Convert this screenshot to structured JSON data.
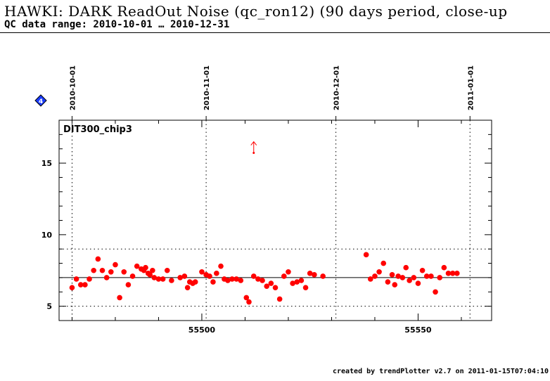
{
  "header": {
    "title": "HAWKI: DARK ReadOut Noise (qc_ron12) (90 days period, close-up",
    "subtitle": "QC data range: 2010-10-01 … 2010-12-31"
  },
  "footer": {
    "credit": "created by trendPlotter v2.7 on 2011-01-15T07:04:10"
  },
  "marker_badge": {
    "label": "4",
    "color": "#1a3cff"
  },
  "chart_data": {
    "type": "scatter",
    "panel_label": "DIT300_chip3",
    "xlim": [
      55467,
      55567
    ],
    "ylim": [
      4,
      18
    ],
    "x_ticks": [
      55500,
      55550
    ],
    "y_ticks": [
      5,
      10,
      15
    ],
    "date_markers": [
      {
        "label": "2010-10-01",
        "x": 55470
      },
      {
        "label": "2010-11-01",
        "x": 55501
      },
      {
        "label": "2010-12-01",
        "x": 55531
      },
      {
        "label": "2011-01-01",
        "x": 55562
      }
    ],
    "reference_lines": {
      "mean": 7.0,
      "upper": 9.0,
      "lower": 5.0
    },
    "colors": {
      "points": "#ff0000",
      "lines": "#000000"
    },
    "outlier_arrow": {
      "x": 55512,
      "y": 16.5
    },
    "points": [
      [
        55470,
        6.3
      ],
      [
        55471,
        6.9
      ],
      [
        55472,
        6.5
      ],
      [
        55473,
        6.5
      ],
      [
        55474,
        6.9
      ],
      [
        55475,
        7.5
      ],
      [
        55476,
        8.3
      ],
      [
        55477,
        7.5
      ],
      [
        55478,
        7.0
      ],
      [
        55479,
        7.4
      ],
      [
        55480,
        7.9
      ],
      [
        55481,
        5.6
      ],
      [
        55482,
        7.4
      ],
      [
        55483,
        6.5
      ],
      [
        55484,
        7.1
      ],
      [
        55485,
        7.8
      ],
      [
        55486,
        7.6
      ],
      [
        55486.6,
        7.5
      ],
      [
        55487,
        7.7
      ],
      [
        55487.6,
        7.3
      ],
      [
        55488,
        7.2
      ],
      [
        55488.6,
        7.5
      ],
      [
        55489,
        7.0
      ],
      [
        55490,
        6.9
      ],
      [
        55491,
        6.9
      ],
      [
        55492,
        7.5
      ],
      [
        55493,
        6.8
      ],
      [
        55495,
        7.0
      ],
      [
        55496,
        7.1
      ],
      [
        55496.7,
        6.3
      ],
      [
        55497.2,
        6.7
      ],
      [
        55497.9,
        6.6
      ],
      [
        55498.5,
        6.7
      ],
      [
        55500,
        7.4
      ],
      [
        55501,
        7.2
      ],
      [
        55501.8,
        7.1
      ],
      [
        55502.6,
        6.7
      ],
      [
        55503.4,
        7.3
      ],
      [
        55504.4,
        7.8
      ],
      [
        55505.2,
        6.9
      ],
      [
        55506,
        6.8
      ],
      [
        55507,
        6.9
      ],
      [
        55508,
        6.9
      ],
      [
        55509,
        6.8
      ],
      [
        55510.3,
        5.6
      ],
      [
        55510.9,
        5.3
      ],
      [
        55512,
        7.1
      ],
      [
        55513,
        6.9
      ],
      [
        55514,
        6.8
      ],
      [
        55515,
        6.4
      ],
      [
        55516,
        6.6
      ],
      [
        55517,
        6.3
      ],
      [
        55518,
        5.5
      ],
      [
        55519,
        7.1
      ],
      [
        55520,
        7.4
      ],
      [
        55521,
        6.6
      ],
      [
        55522,
        6.7
      ],
      [
        55523,
        6.8
      ],
      [
        55524,
        6.3
      ],
      [
        55525,
        7.3
      ],
      [
        55526,
        7.2
      ],
      [
        55528,
        7.1
      ],
      [
        55538,
        8.6
      ],
      [
        55539,
        6.9
      ],
      [
        55540,
        7.1
      ],
      [
        55541,
        7.4
      ],
      [
        55542,
        8.0
      ],
      [
        55543,
        6.7
      ],
      [
        55544,
        7.2
      ],
      [
        55544.6,
        6.5
      ],
      [
        55545.4,
        7.1
      ],
      [
        55546.4,
        7.0
      ],
      [
        55547.2,
        7.7
      ],
      [
        55548,
        6.8
      ],
      [
        55549,
        7.0
      ],
      [
        55550,
        6.6
      ],
      [
        55551,
        7.5
      ],
      [
        55552,
        7.1
      ],
      [
        55553,
        7.1
      ],
      [
        55554,
        6.0
      ],
      [
        55555,
        7.0
      ],
      [
        55556,
        7.7
      ],
      [
        55557,
        7.3
      ],
      [
        55558,
        7.3
      ],
      [
        55559,
        7.3
      ]
    ]
  }
}
